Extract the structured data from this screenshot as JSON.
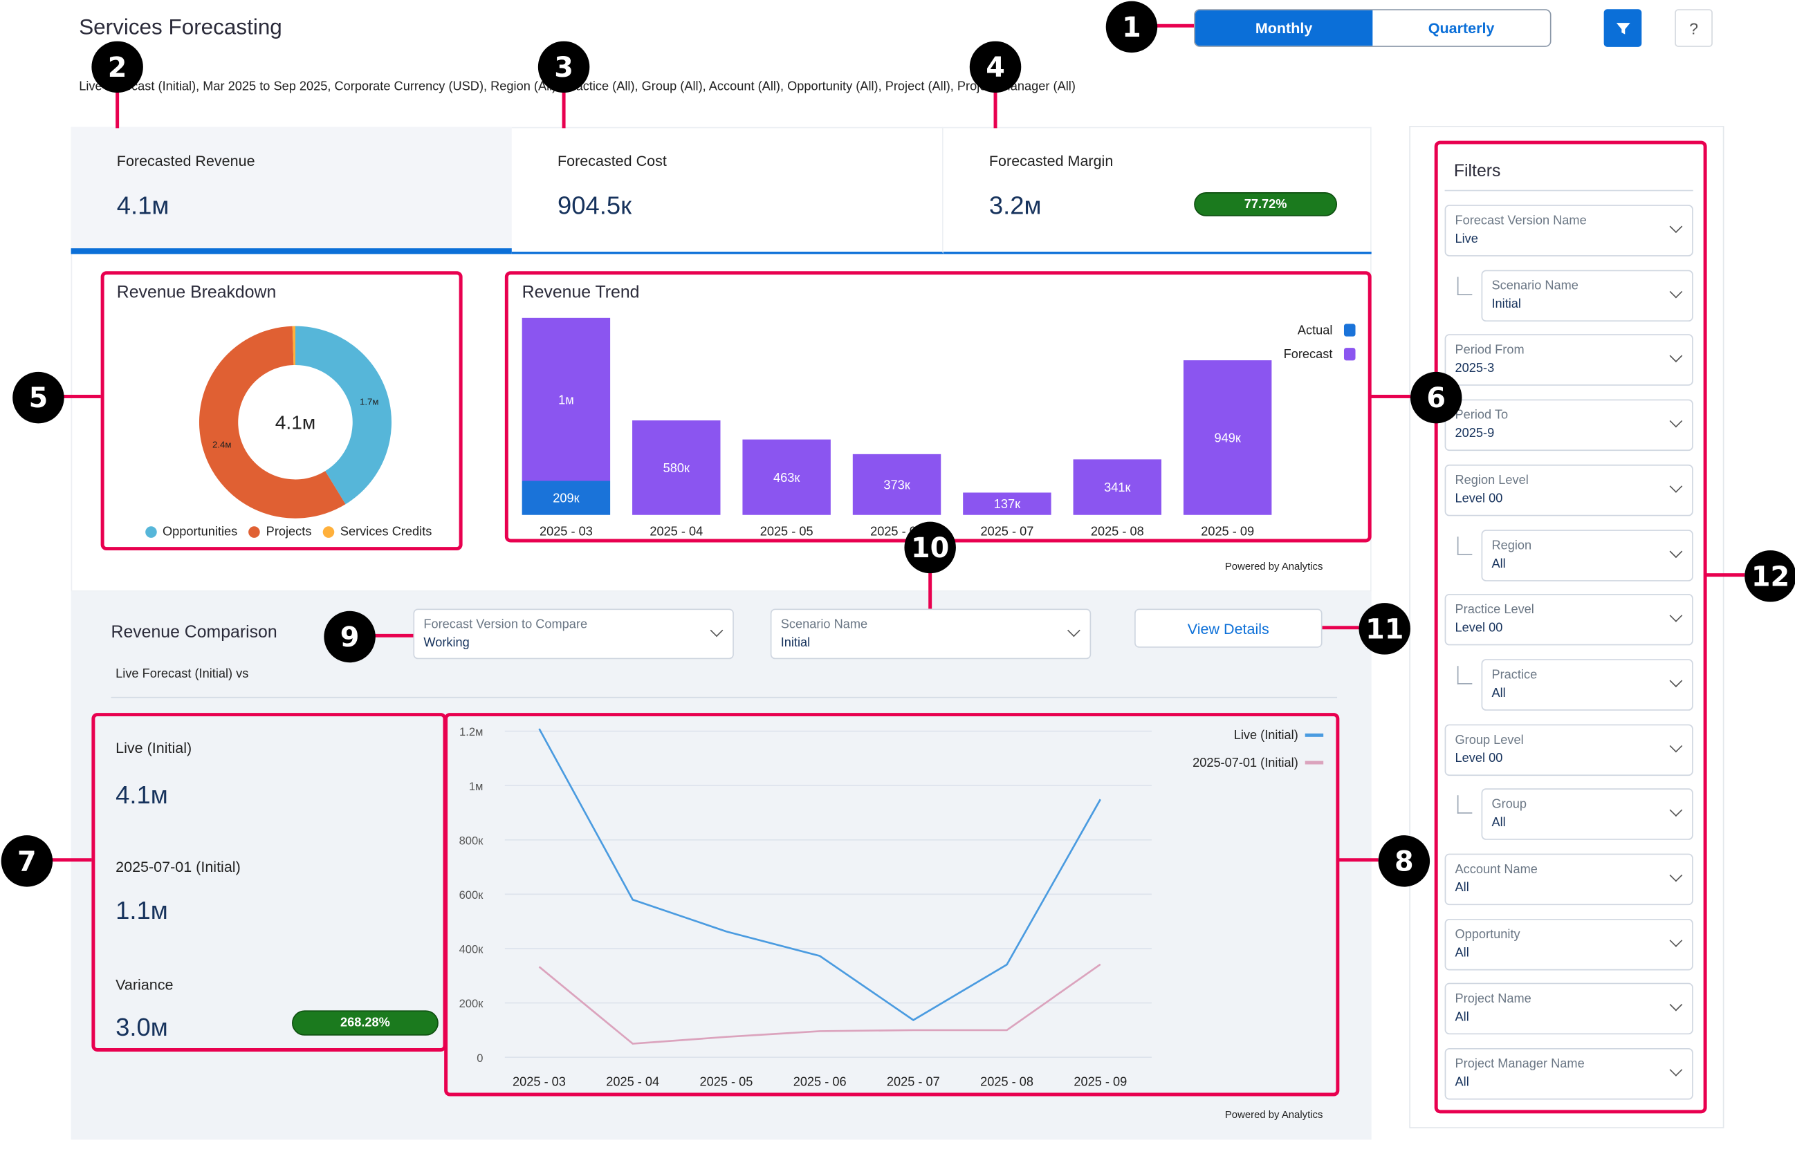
{
  "header": {
    "title": "Services Forecasting",
    "subtitle": "Live Forecast (Initial), Mar 2025 to Sep 2025, Corporate Currency (USD), Region (All), Practice (All), Group (All), Account (All), Opportunity (All), Project (All), Project Manager (All)",
    "toggle": {
      "monthly": "Monthly",
      "quarterly": "Quarterly",
      "selected": "Monthly"
    },
    "filter_icon": "filter-icon",
    "help_label": "?"
  },
  "kpis": [
    {
      "label": "Forecasted Revenue",
      "value": "4.1м"
    },
    {
      "label": "Forecasted Cost",
      "value": "904.5к"
    },
    {
      "label": "Forecasted Margin",
      "value": "3.2м",
      "badge": "77.72%"
    }
  ],
  "breakdown": {
    "title": "Revenue Breakdown",
    "center": "4.1м",
    "colors": {
      "Opportunities": "#56b6d9",
      "Projects": "#e06033",
      "Services Credits": "#ffb03b"
    }
  },
  "trend": {
    "title": "Revenue Trend",
    "powered": "Powered by Analytics",
    "colors": {
      "Actual": "#1a73d9",
      "Forecast": "#8b55f0"
    }
  },
  "comparison": {
    "title": "Revenue Comparison",
    "subtitle": "Live Forecast (Initial) vs",
    "version": {
      "label": "Forecast Version to Compare",
      "value": "Working"
    },
    "scenario": {
      "label": "Scenario Name",
      "value": "Initial"
    },
    "view_details": "View Details",
    "live_label": "Live (Initial)",
    "live_value": "4.1м",
    "compare_label": "2025-07-01 (Initial)",
    "compare_value": "1.1м",
    "variance_label": "Variance",
    "variance_value": "3.0м",
    "variance_badge": "268.28%",
    "powered": "Powered by Analytics"
  },
  "filters": {
    "title": "Filters",
    "items": [
      {
        "label": "Forecast Version Name",
        "value": "Live",
        "indent": false
      },
      {
        "label": "Scenario Name",
        "value": "Initial",
        "indent": true
      },
      {
        "label": "Period From",
        "value": "2025-3",
        "indent": false
      },
      {
        "label": "Period To",
        "value": "2025-9",
        "indent": false
      },
      {
        "label": "Region Level",
        "value": "Level 00",
        "indent": false
      },
      {
        "label": "Region",
        "value": "All",
        "indent": true
      },
      {
        "label": "Practice Level",
        "value": "Level 00",
        "indent": false
      },
      {
        "label": "Practice",
        "value": "All",
        "indent": true
      },
      {
        "label": "Group Level",
        "value": "Level 00",
        "indent": false
      },
      {
        "label": "Group",
        "value": "All",
        "indent": true
      },
      {
        "label": "Account Name",
        "value": "All",
        "indent": false
      },
      {
        "label": "Opportunity",
        "value": "All",
        "indent": false
      },
      {
        "label": "Project Name",
        "value": "All",
        "indent": false
      },
      {
        "label": "Project Manager Name",
        "value": "All",
        "indent": false
      }
    ]
  },
  "callouts": [
    "1",
    "2",
    "3",
    "4",
    "5",
    "6",
    "7",
    "8",
    "9",
    "10",
    "11",
    "12"
  ],
  "chart_data": [
    {
      "type": "pie",
      "title": "Revenue Breakdown",
      "center_label": "4.1м",
      "legend": "bottom",
      "slices": [
        {
          "name": "Opportunities",
          "value": 1.7,
          "label": "1.7м"
        },
        {
          "name": "Projects",
          "value": 2.4,
          "label": "2.4м"
        },
        {
          "name": "Services Credits",
          "value": 0.02,
          "label": ""
        }
      ]
    },
    {
      "type": "bar",
      "stacked": true,
      "title": "Revenue Trend",
      "legend": "top-right",
      "categories": [
        "2025 - 03",
        "2025 - 04",
        "2025 - 05",
        "2025 - 06",
        "2025 - 07",
        "2025 - 08",
        "2025 - 09"
      ],
      "series": [
        {
          "name": "Actual",
          "values": [
            209,
            0,
            0,
            0,
            0,
            0,
            0
          ],
          "labels": [
            "209к",
            "",
            "",
            "",
            "",
            "",
            ""
          ]
        },
        {
          "name": "Forecast",
          "values": [
            1000,
            580,
            463,
            373,
            137,
            341,
            949
          ],
          "labels": [
            "1м",
            "580к",
            "463к",
            "373к",
            "137к",
            "341к",
            "949к"
          ]
        }
      ],
      "unit": "K"
    },
    {
      "type": "line",
      "legend": "top-right",
      "grid": true,
      "categories": [
        "2025 - 03",
        "2025 - 04",
        "2025 - 05",
        "2025 - 06",
        "2025 - 07",
        "2025 - 08",
        "2025 - 09"
      ],
      "yticks": [
        "0",
        "200к",
        "400к",
        "600к",
        "800к",
        "1м",
        "1.2м"
      ],
      "ylim": [
        0,
        1200000
      ],
      "series": [
        {
          "name": "Live (Initial)",
          "color": "#4a9be0",
          "values": [
            1209000,
            580000,
            463000,
            373000,
            137000,
            341000,
            949000
          ]
        },
        {
          "name": "2025-07-01 (Initial)",
          "color": "#dba3bd",
          "values": [
            333000,
            50000,
            75000,
            96000,
            100000,
            100000,
            342000
          ]
        }
      ]
    }
  ]
}
